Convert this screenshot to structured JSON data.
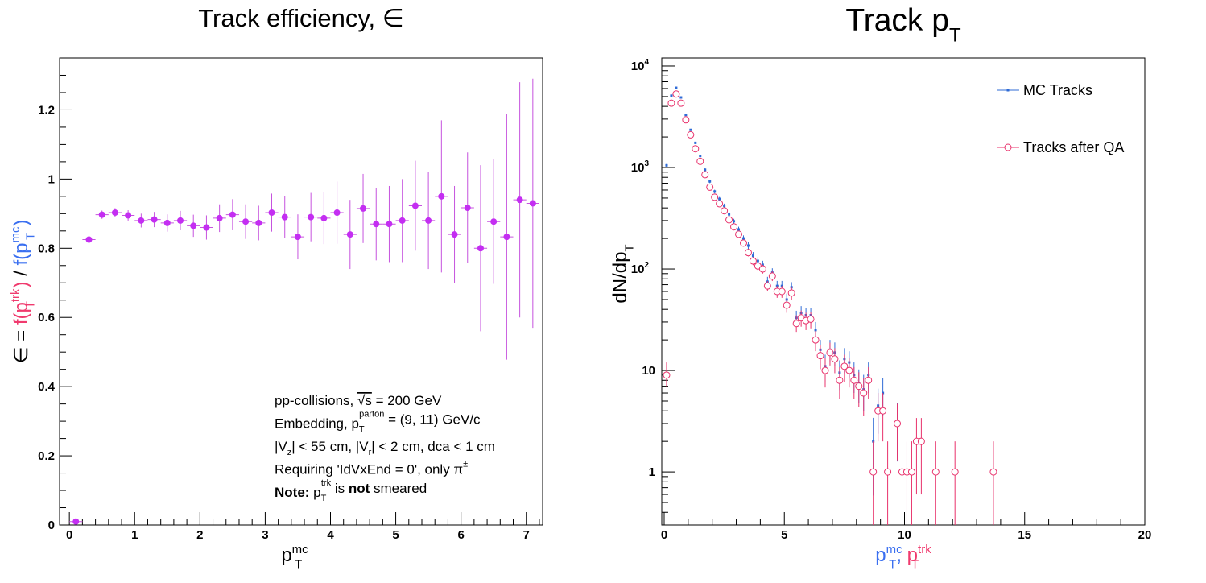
{
  "colors": {
    "efficiency_points": "#c42ef2",
    "efficiency_errors": "#c653de",
    "mc_tracks": "#2f6bd6",
    "trk_tracks": "#e8316b",
    "label_mc": "#3a6ff0",
    "label_trk": "#f03a6e",
    "frame": "#000000"
  },
  "chart_data": [
    {
      "type": "scatter",
      "title": "Track efficiency, ∈",
      "xlabel": {
        "base": "p",
        "sub": "T",
        "sup": "mc"
      },
      "ylabel": {
        "prefix": "∈ = ",
        "numerator": {
          "base": "f(p",
          "sub": "T",
          "sup": "trk",
          "close": ")"
        },
        "divider": " / ",
        "denominator": {
          "base": "f(p",
          "sub": "T",
          "sup": "mc",
          "close": ")"
        }
      },
      "xlim": [
        -0.15,
        7.25
      ],
      "ylim": [
        0,
        1.35
      ],
      "xticks": [
        0,
        1,
        2,
        3,
        4,
        5,
        6,
        7
      ],
      "yticks": [
        {
          "value": 0,
          "label": "0"
        },
        {
          "value": 0.2,
          "label": "0.2"
        },
        {
          "value": 0.4,
          "label": "0.4"
        },
        {
          "value": 0.6,
          "label": "0.6"
        },
        {
          "value": 0.8,
          "label": "0.8"
        },
        {
          "value": 1.0,
          "label": "1"
        },
        {
          "value": 1.2,
          "label": "1.2"
        }
      ],
      "x_bin_halfwidth": 0.1,
      "series": [
        {
          "points": [
            {
              "x": 0.1,
              "y": 0.01,
              "err": 0.0
            },
            {
              "x": 0.3,
              "y": 0.825,
              "err": 0.015
            },
            {
              "x": 0.5,
              "y": 0.897,
              "err": 0.012
            },
            {
              "x": 0.7,
              "y": 0.903,
              "err": 0.013
            },
            {
              "x": 0.9,
              "y": 0.895,
              "err": 0.015
            },
            {
              "x": 1.1,
              "y": 0.88,
              "err": 0.02
            },
            {
              "x": 1.3,
              "y": 0.883,
              "err": 0.022
            },
            {
              "x": 1.5,
              "y": 0.873,
              "err": 0.025
            },
            {
              "x": 1.7,
              "y": 0.88,
              "err": 0.028
            },
            {
              "x": 1.9,
              "y": 0.865,
              "err": 0.032
            },
            {
              "x": 2.1,
              "y": 0.86,
              "err": 0.035
            },
            {
              "x": 2.3,
              "y": 0.887,
              "err": 0.04
            },
            {
              "x": 2.5,
              "y": 0.897,
              "err": 0.045
            },
            {
              "x": 2.7,
              "y": 0.877,
              "err": 0.05
            },
            {
              "x": 2.9,
              "y": 0.873,
              "err": 0.05
            },
            {
              "x": 3.1,
              "y": 0.903,
              "err": 0.055
            },
            {
              "x": 3.3,
              "y": 0.89,
              "err": 0.06
            },
            {
              "x": 3.5,
              "y": 0.833,
              "err": 0.065
            },
            {
              "x": 3.7,
              "y": 0.89,
              "err": 0.07
            },
            {
              "x": 3.9,
              "y": 0.887,
              "err": 0.075
            },
            {
              "x": 4.1,
              "y": 0.903,
              "err": 0.09
            },
            {
              "x": 4.3,
              "y": 0.84,
              "err": 0.1
            },
            {
              "x": 4.5,
              "y": 0.915,
              "err": 0.1
            },
            {
              "x": 4.7,
              "y": 0.87,
              "err": 0.105
            },
            {
              "x": 4.9,
              "y": 0.87,
              "err": 0.11
            },
            {
              "x": 5.1,
              "y": 0.88,
              "err": 0.12
            },
            {
              "x": 5.3,
              "y": 0.923,
              "err": 0.13
            },
            {
              "x": 5.5,
              "y": 0.88,
              "err": 0.14
            },
            {
              "x": 5.7,
              "y": 0.95,
              "err": 0.22
            },
            {
              "x": 5.9,
              "y": 0.84,
              "err": 0.14
            },
            {
              "x": 6.1,
              "y": 0.917,
              "err": 0.16
            },
            {
              "x": 6.3,
              "y": 0.8,
              "err": 0.24
            },
            {
              "x": 6.5,
              "y": 0.877,
              "err": 0.18
            },
            {
              "x": 6.7,
              "y": 0.833,
              "err": 0.355
            },
            {
              "x": 6.9,
              "y": 0.94,
              "err": 0.34
            },
            {
              "x": 7.1,
              "y": 0.93,
              "err": 0.36
            }
          ]
        }
      ],
      "annotations": [
        [
          {
            "t": "pp-collisions, "
          },
          {
            "t": "√s",
            "overline": true
          },
          {
            "t": " = 200 GeV"
          }
        ],
        [
          {
            "t": "Embedding, p"
          },
          {
            "t": "T",
            "sub": true
          },
          {
            "t": "parton",
            "sup": true
          },
          {
            "t": " = (9, 11) GeV/c"
          }
        ],
        [
          {
            "t": "|V"
          },
          {
            "t": "z",
            "sub": true
          },
          {
            "t": "| < 55 cm, |V"
          },
          {
            "t": "r",
            "sub": true
          },
          {
            "t": "| < 2 cm, dca < 1 cm"
          }
        ],
        [
          {
            "t": "Requiring 'IdVxEnd = 0', only π"
          },
          {
            "t": "±",
            "sup": true
          }
        ],
        [
          {
            "t": "Note:",
            "bold": true
          },
          {
            "t": " p"
          },
          {
            "t": "T",
            "sub": true
          },
          {
            "t": "trk",
            "sup": true
          },
          {
            "t": " is "
          },
          {
            "t": "not",
            "bold": true
          },
          {
            "t": " smeared"
          }
        ]
      ]
    },
    {
      "type": "scatter",
      "title": {
        "base": "Track p",
        "sub": "T"
      },
      "xlabel": [
        {
          "base": "p",
          "sub": "T",
          "sup": "mc",
          "color_key": "label_mc"
        },
        {
          "base": ", ",
          "color_key": "label_mc"
        },
        {
          "base": "p",
          "sub": "T",
          "sup": "trk",
          "color_key": "label_trk"
        }
      ],
      "ylabel": {
        "base": "dN/dp",
        "sub": "T"
      },
      "xlim": [
        -0.1,
        20.0
      ],
      "ylim": [
        0.3,
        12000
      ],
      "yscale": "log",
      "xticks": [
        0,
        5,
        10,
        15,
        20
      ],
      "yticks": [
        {
          "value": 1,
          "label": "1"
        },
        {
          "value": 10,
          "label": "10"
        },
        {
          "value": 100,
          "label": "10",
          "exp": "2"
        },
        {
          "value": 1000,
          "label": "10",
          "exp": "3"
        },
        {
          "value": 10000,
          "label": "10",
          "exp": "4"
        }
      ],
      "legend": {
        "placement": "top-right",
        "entries": [
          {
            "label": "MC Tracks",
            "marker": "dot",
            "color_key": "mc_tracks"
          },
          {
            "label": "Tracks after QA",
            "marker": "circle",
            "color_key": "trk_tracks"
          }
        ]
      },
      "series": [
        {
          "name": "MC Tracks",
          "marker": "dot",
          "color_key": "mc_tracks",
          "points": [
            {
              "x": 0.1,
              "y": 1050
            },
            {
              "x": 0.3,
              "y": 5100
            },
            {
              "x": 0.5,
              "y": 6100
            },
            {
              "x": 0.7,
              "y": 4900
            },
            {
              "x": 0.9,
              "y": 3300
            },
            {
              "x": 1.1,
              "y": 2350
            },
            {
              "x": 1.3,
              "y": 1750
            },
            {
              "x": 1.5,
              "y": 1300
            },
            {
              "x": 1.7,
              "y": 950
            },
            {
              "x": 1.9,
              "y": 730
            },
            {
              "x": 2.1,
              "y": 580
            },
            {
              "x": 2.3,
              "y": 490
            },
            {
              "x": 2.5,
              "y": 420
            },
            {
              "x": 2.7,
              "y": 345
            },
            {
              "x": 2.9,
              "y": 295
            },
            {
              "x": 3.1,
              "y": 245
            },
            {
              "x": 3.3,
              "y": 200
            },
            {
              "x": 3.5,
              "y": 170
            },
            {
              "x": 3.7,
              "y": 135
            },
            {
              "x": 3.9,
              "y": 120
            },
            {
              "x": 4.1,
              "y": 110
            },
            {
              "x": 4.3,
              "y": 75
            },
            {
              "x": 4.5,
              "y": 92
            },
            {
              "x": 4.7,
              "y": 68
            },
            {
              "x": 4.9,
              "y": 68
            },
            {
              "x": 5.1,
              "y": 50
            },
            {
              "x": 5.3,
              "y": 66
            },
            {
              "x": 5.5,
              "y": 33
            },
            {
              "x": 5.7,
              "y": 37
            },
            {
              "x": 5.9,
              "y": 35
            },
            {
              "x": 6.1,
              "y": 35
            },
            {
              "x": 6.3,
              "y": 25
            },
            {
              "x": 6.5,
              "y": 16
            },
            {
              "x": 6.7,
              "y": 11
            },
            {
              "x": 6.9,
              "y": 16
            },
            {
              "x": 7.1,
              "y": 15
            },
            {
              "x": 7.3,
              "y": 9.5
            },
            {
              "x": 7.5,
              "y": 13
            },
            {
              "x": 7.7,
              "y": 12
            },
            {
              "x": 7.9,
              "y": 9
            },
            {
              "x": 8.1,
              "y": 7.5
            },
            {
              "x": 8.3,
              "y": 6.5
            },
            {
              "x": 8.5,
              "y": 9
            },
            {
              "x": 8.7,
              "y": 2
            },
            {
              "x": 8.9,
              "y": 4.5
            },
            {
              "x": 9.1,
              "y": 6
            },
            {
              "x": 9.7,
              "y": 3
            }
          ]
        },
        {
          "name": "Tracks after QA",
          "marker": "circle",
          "color_key": "trk_tracks",
          "points": [
            {
              "x": 0.1,
              "y": 9,
              "lo": 7,
              "hi": 12
            },
            {
              "x": 0.3,
              "y": 4300,
              "lo": 4150,
              "hi": 4450
            },
            {
              "x": 0.5,
              "y": 5300,
              "lo": 5150,
              "hi": 5450
            },
            {
              "x": 0.7,
              "y": 4300,
              "lo": 4150,
              "hi": 4450
            },
            {
              "x": 0.9,
              "y": 2950,
              "lo": 2850,
              "hi": 3050
            },
            {
              "x": 1.1,
              "y": 2100,
              "lo": 2030,
              "hi": 2170
            },
            {
              "x": 1.3,
              "y": 1530,
              "lo": 1480,
              "hi": 1580
            },
            {
              "x": 1.5,
              "y": 1150,
              "lo": 1110,
              "hi": 1190
            },
            {
              "x": 1.7,
              "y": 850,
              "lo": 820,
              "hi": 880
            },
            {
              "x": 1.9,
              "y": 640,
              "lo": 615,
              "hi": 665
            },
            {
              "x": 2.1,
              "y": 510,
              "lo": 490,
              "hi": 530
            },
            {
              "x": 2.3,
              "y": 440,
              "lo": 420,
              "hi": 460
            },
            {
              "x": 2.5,
              "y": 375,
              "lo": 355,
              "hi": 395
            },
            {
              "x": 2.7,
              "y": 305,
              "lo": 288,
              "hi": 322
            },
            {
              "x": 2.9,
              "y": 260,
              "lo": 245,
              "hi": 275
            },
            {
              "x": 3.1,
              "y": 220,
              "lo": 205,
              "hi": 235
            },
            {
              "x": 3.3,
              "y": 180,
              "lo": 167,
              "hi": 193
            },
            {
              "x": 3.5,
              "y": 145,
              "lo": 133,
              "hi": 157
            },
            {
              "x": 3.7,
              "y": 120,
              "lo": 109,
              "hi": 131
            },
            {
              "x": 3.9,
              "y": 107,
              "lo": 97,
              "hi": 117
            },
            {
              "x": 4.1,
              "y": 100,
              "lo": 90,
              "hi": 110
            },
            {
              "x": 4.3,
              "y": 68,
              "lo": 60,
              "hi": 76
            },
            {
              "x": 4.5,
              "y": 85,
              "lo": 76,
              "hi": 95
            },
            {
              "x": 4.7,
              "y": 60,
              "lo": 52,
              "hi": 68
            },
            {
              "x": 4.9,
              "y": 60,
              "lo": 52,
              "hi": 68
            },
            {
              "x": 5.1,
              "y": 44,
              "lo": 37,
              "hi": 51
            },
            {
              "x": 5.3,
              "y": 58,
              "lo": 50,
              "hi": 66
            },
            {
              "x": 5.5,
              "y": 29,
              "lo": 24,
              "hi": 35
            },
            {
              "x": 5.7,
              "y": 33,
              "lo": 27,
              "hi": 39
            },
            {
              "x": 5.9,
              "y": 31,
              "lo": 25,
              "hi": 37
            },
            {
              "x": 6.1,
              "y": 32,
              "lo": 26,
              "hi": 38
            },
            {
              "x": 6.3,
              "y": 20,
              "lo": 15.5,
              "hi": 24.5
            },
            {
              "x": 6.5,
              "y": 14,
              "lo": 10.3,
              "hi": 17.7
            },
            {
              "x": 6.7,
              "y": 10,
              "lo": 6.8,
              "hi": 13.2
            },
            {
              "x": 6.9,
              "y": 15,
              "lo": 11.2,
              "hi": 18.8
            },
            {
              "x": 7.1,
              "y": 13,
              "lo": 9.4,
              "hi": 16.6
            },
            {
              "x": 7.3,
              "y": 8,
              "lo": 5.2,
              "hi": 10.8
            },
            {
              "x": 7.5,
              "y": 11,
              "lo": 7.7,
              "hi": 14.3
            },
            {
              "x": 7.7,
              "y": 10,
              "lo": 6.8,
              "hi": 13.2
            },
            {
              "x": 7.9,
              "y": 8,
              "lo": 5.2,
              "hi": 10.8
            },
            {
              "x": 8.1,
              "y": 7,
              "lo": 4.4,
              "hi": 9.6
            },
            {
              "x": 8.3,
              "y": 6,
              "lo": 3.6,
              "hi": 8.4
            },
            {
              "x": 8.5,
              "y": 8,
              "lo": 5.2,
              "hi": 10.8
            },
            {
              "x": 8.7,
              "y": 1,
              "lo": 0.01,
              "hi": 2
            },
            {
              "x": 8.9,
              "y": 4,
              "lo": 2,
              "hi": 6
            },
            {
              "x": 9.1,
              "y": 4,
              "lo": 2,
              "hi": 6
            },
            {
              "x": 9.3,
              "y": 1,
              "lo": 0.01,
              "hi": 2
            },
            {
              "x": 9.7,
              "y": 3,
              "lo": 1.3,
              "hi": 4.7
            },
            {
              "x": 9.9,
              "y": 1,
              "lo": 0.01,
              "hi": 2
            },
            {
              "x": 10.1,
              "y": 1,
              "lo": 0.01,
              "hi": 2
            },
            {
              "x": 10.3,
              "y": 1,
              "lo": 0.01,
              "hi": 2
            },
            {
              "x": 10.5,
              "y": 2,
              "lo": 0.6,
              "hi": 3.4
            },
            {
              "x": 10.7,
              "y": 2,
              "lo": 0.6,
              "hi": 3.4
            },
            {
              "x": 11.3,
              "y": 1,
              "lo": 0.01,
              "hi": 2
            },
            {
              "x": 12.1,
              "y": 1,
              "lo": 0.01,
              "hi": 2
            },
            {
              "x": 13.7,
              "y": 1,
              "lo": 0.01,
              "hi": 2
            }
          ]
        }
      ]
    }
  ]
}
